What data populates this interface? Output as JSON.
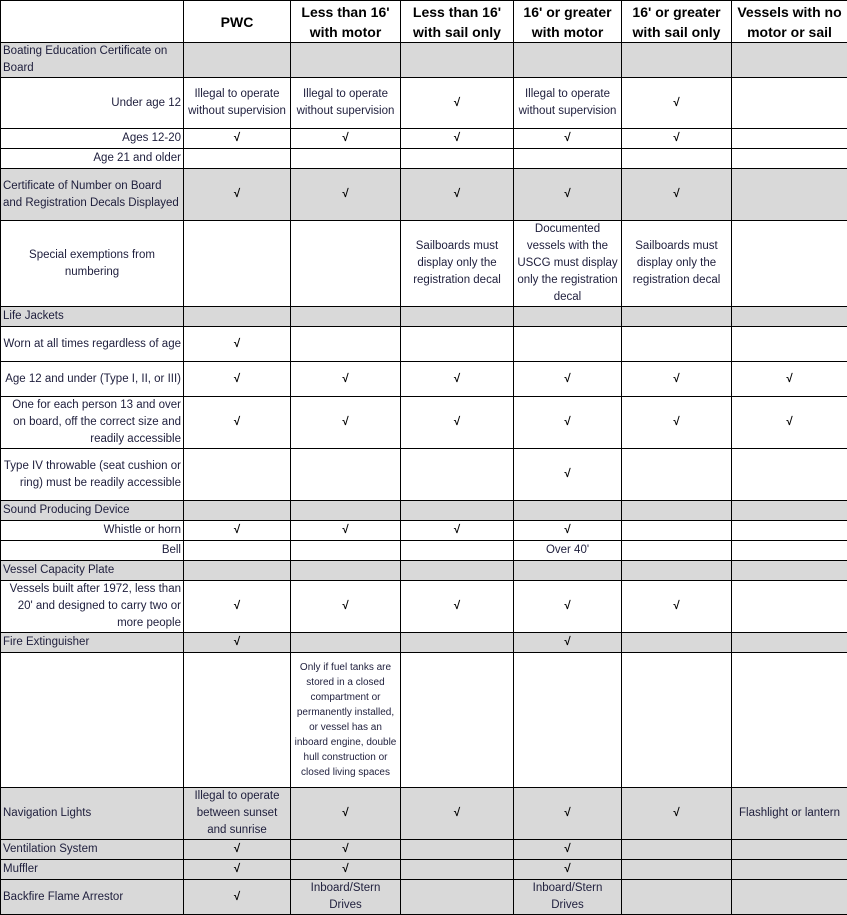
{
  "columns": [
    "",
    "PWC",
    "Less than 16' with motor",
    "Less than 16' with sail only",
    "16' or greater with motor",
    "16' or greater with sail only",
    "Vessels with no motor or sail"
  ],
  "check_symbol": "√",
  "rows": [
    {
      "label": "Boating Education Certificate on Board",
      "section": true,
      "shaded": true,
      "h": 35,
      "cells": [
        "",
        "",
        "",
        "",
        "",
        ""
      ]
    },
    {
      "label": "Under age 12",
      "h": 51,
      "cells": [
        "Illegal to operate without supervision",
        "Illegal to operate without supervision",
        "√",
        "Illegal to operate without supervision",
        "√",
        ""
      ]
    },
    {
      "label": "Ages 12-20",
      "h": 20,
      "cells": [
        "√",
        "√",
        "√",
        "√",
        "√",
        ""
      ]
    },
    {
      "label": "Age 21 and older",
      "h": 20,
      "cells": [
        "",
        "",
        "",
        "",
        "",
        ""
      ]
    },
    {
      "label": "Certificate of Number on Board and Registration Decals Displayed",
      "section": true,
      "shaded": true,
      "h": 52,
      "cells": [
        "√",
        "√",
        "√",
        "√",
        "√",
        ""
      ]
    },
    {
      "label": "Special exemptions from numbering",
      "center": true,
      "h": 85,
      "cells": [
        "",
        "",
        "Sailboards must display only the registration decal",
        "Documented vessels with the USCG must display only the registration decal",
        "Sailboards must display only the registration decal",
        ""
      ]
    },
    {
      "label": "Life Jackets",
      "section": true,
      "shaded": true,
      "h": 20,
      "cells": [
        "",
        "",
        "",
        "",
        "",
        ""
      ]
    },
    {
      "label": "Worn at all times regardless of age",
      "h": 35,
      "cells": [
        "√",
        "",
        "",
        "",
        "",
        ""
      ]
    },
    {
      "label": "Age 12 and under (Type I, II, or III)",
      "h": 35,
      "cells": [
        "√",
        "√",
        "√",
        "√",
        "√",
        "√"
      ]
    },
    {
      "label": "One for each person 13 and over on board, off the correct size and readily accessible",
      "h": 52,
      "cells": [
        "√",
        "√",
        "√",
        "√",
        "√",
        "√"
      ]
    },
    {
      "label": "Type IV throwable (seat cushion or ring) must be readily accessible",
      "h": 52,
      "cells": [
        "",
        "",
        "",
        "√",
        "",
        ""
      ]
    },
    {
      "label": "Sound Producing Device",
      "section": true,
      "shaded": true,
      "h": 20,
      "cells": [
        "",
        "",
        "",
        "",
        "",
        ""
      ]
    },
    {
      "label": "Whistle or horn",
      "h": 20,
      "cells": [
        "√",
        "√",
        "√",
        "√",
        "",
        ""
      ]
    },
    {
      "label": "Bell",
      "h": 20,
      "cells": [
        "",
        "",
        "",
        "Over 40'",
        "",
        ""
      ]
    },
    {
      "label": "Vessel Capacity Plate",
      "section": true,
      "shaded": true,
      "h": 20,
      "cells": [
        "",
        "",
        "",
        "",
        "",
        ""
      ]
    },
    {
      "label": "Vessels built after 1972, less than 20' and designed to carry two or more people",
      "h": 52,
      "cells": [
        "√",
        "√",
        "√",
        "√",
        "√",
        ""
      ]
    },
    {
      "label": "Fire Extinguisher",
      "section": true,
      "shaded": true,
      "h": 20,
      "cells": [
        "√",
        "",
        "",
        "√",
        "",
        ""
      ]
    },
    {
      "label": "",
      "h": 135,
      "small": 1,
      "cells": [
        "",
        "Only if fuel tanks are stored in a closed compartment or permanently installed, or vessel has an inboard engine, double hull construction or closed living spaces",
        "",
        "",
        "",
        ""
      ]
    },
    {
      "label": "Navigation Lights",
      "section": true,
      "shaded": true,
      "h": 52,
      "cells": [
        "Illegal to operate between sunset and sunrise",
        "√",
        "√",
        "√",
        "√",
        "Flashlight or lantern"
      ]
    },
    {
      "label": "Ventilation System",
      "section": true,
      "shaded": true,
      "h": 20,
      "cells": [
        "√",
        "√",
        "",
        "√",
        "",
        ""
      ]
    },
    {
      "label": "Muffler",
      "section": true,
      "shaded": true,
      "h": 20,
      "cells": [
        "√",
        "√",
        "",
        "√",
        "",
        ""
      ]
    },
    {
      "label": "Backfire Flame Arrestor",
      "section": true,
      "shaded": true,
      "h": 34,
      "cells": [
        "√",
        "Inboard/Stern Drives",
        "",
        "Inboard/Stern Drives",
        "",
        ""
      ]
    }
  ]
}
